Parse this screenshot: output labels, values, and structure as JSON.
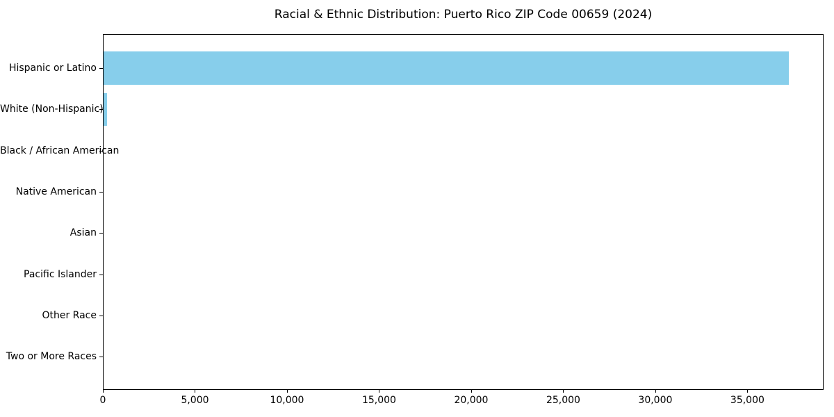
{
  "chart_data": {
    "type": "bar",
    "orientation": "horizontal",
    "title": "Racial & Ethnic Distribution: Puerto Rico ZIP Code 00659 (2024)",
    "categories": [
      "Hispanic or Latino",
      "White (Non-Hispanic)",
      "Black / African American",
      "Native American",
      "Asian",
      "Pacific Islander",
      "Other Race",
      "Two or More Races"
    ],
    "values": [
      37200,
      180,
      0,
      0,
      0,
      0,
      0,
      0
    ],
    "xlabel": "",
    "ylabel": "",
    "xlim": [
      0,
      39060
    ],
    "xticks": [
      {
        "value": 0,
        "label": "0"
      },
      {
        "value": 5000,
        "label": "5,000"
      },
      {
        "value": 10000,
        "label": "10,000"
      },
      {
        "value": 15000,
        "label": "15,000"
      },
      {
        "value": 20000,
        "label": "20,000"
      },
      {
        "value": 25000,
        "label": "25,000"
      },
      {
        "value": 30000,
        "label": "30,000"
      },
      {
        "value": 35000,
        "label": "35,000"
      }
    ],
    "bar_color": "#87CEEB",
    "axis_color": "#000000",
    "text_color": "#000000",
    "background_color": "#ffffff",
    "grid": false,
    "legend": false
  }
}
